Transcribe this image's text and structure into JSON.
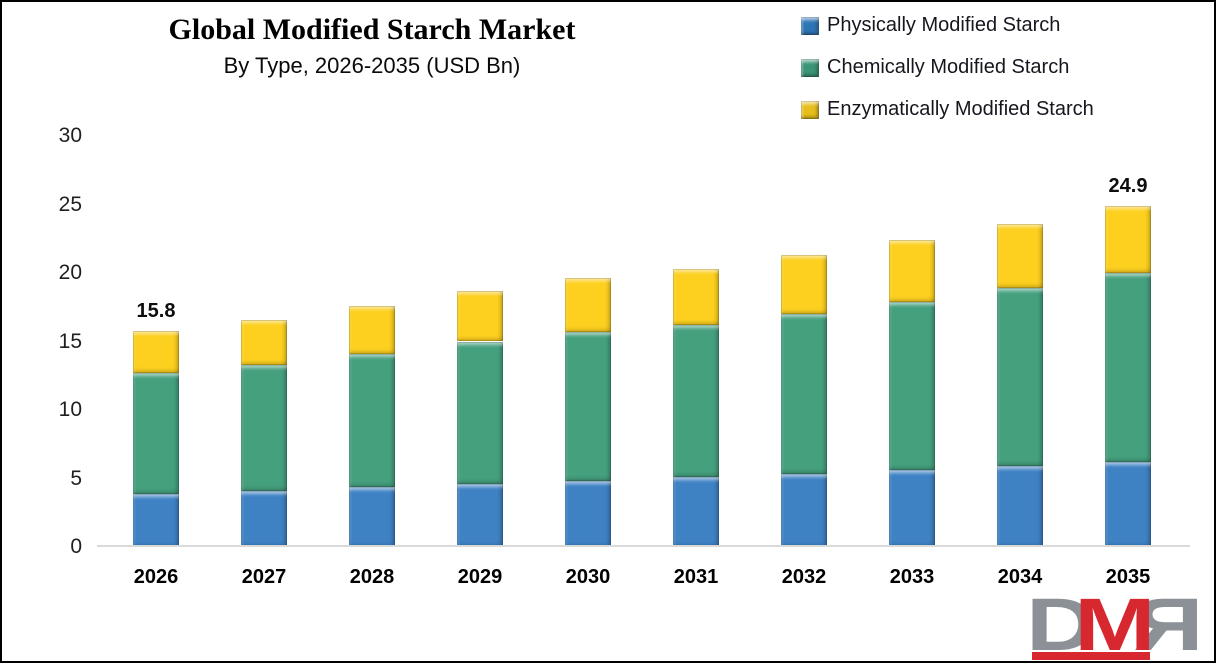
{
  "header": {
    "title": "Global Modified Starch Market",
    "subtitle": "By Type, 2026-2035 (USD Bn)"
  },
  "legend": [
    {
      "label": "Physically Modified Starch",
      "color": "#2e75b6"
    },
    {
      "label": "Chemically Modified Starch",
      "color": "#3a9475"
    },
    {
      "label": "Enzymatically Modified Starch",
      "color": "#e7bd1b"
    }
  ],
  "chart_data": {
    "type": "bar",
    "stacked": true,
    "title": "Global Modified Starch Market",
    "subtitle": "By Type, 2026-2035 (USD Bn)",
    "categories": [
      "2026",
      "2027",
      "2028",
      "2029",
      "2030",
      "2031",
      "2032",
      "2033",
      "2034",
      "2035"
    ],
    "series": [
      {
        "name": "Physically Modified Starch",
        "color": "#3e82c4",
        "values": [
          3.9,
          4.1,
          4.4,
          4.6,
          4.8,
          5.1,
          5.3,
          5.6,
          5.9,
          6.2
        ]
      },
      {
        "name": "Chemically Modified Starch",
        "color": "#45a07e",
        "values": [
          8.8,
          9.2,
          9.7,
          10.4,
          10.9,
          11.1,
          11.7,
          12.3,
          13.0,
          13.8
        ]
      },
      {
        "name": "Enzymatically Modified Starch",
        "color": "#fdd01f",
        "values": [
          3.1,
          3.3,
          3.5,
          3.7,
          3.9,
          4.1,
          4.3,
          4.5,
          4.7,
          4.9
        ]
      }
    ],
    "totals": [
      15.8,
      16.6,
      17.6,
      18.7,
      19.6,
      20.3,
      21.3,
      22.4,
      23.6,
      24.9
    ],
    "value_labels": {
      "2026": "15.8",
      "2035": "24.9"
    },
    "yticks": [
      0,
      5,
      10,
      15,
      20,
      25,
      30
    ],
    "ylim": [
      0,
      30
    ],
    "grid": false,
    "legend_position": "top-right"
  },
  "colors": {
    "axis_line": "#d9d9d9",
    "logo_gray": "#8b9196",
    "logo_red": "#d7282f"
  },
  "logo": {
    "letters": [
      "D",
      "M",
      "R"
    ]
  }
}
